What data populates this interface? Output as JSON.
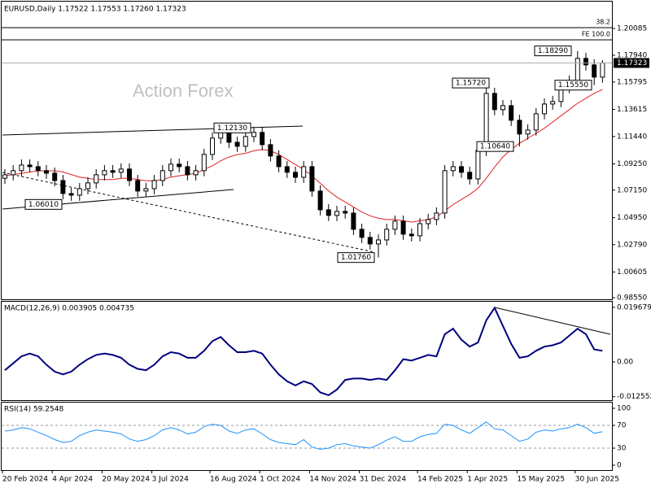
{
  "chart_data": [
    {
      "type": "candlestick",
      "title": "EURUSD,Daily 1.17522 1.17553 1.17260 1.17323",
      "watermark": "Action Forex",
      "categories": [
        "20 Feb 2024",
        null,
        null,
        null,
        null,
        null,
        "4 Apr 2024",
        null,
        null,
        null,
        null,
        null,
        "20 May 2024",
        null,
        null,
        null,
        null,
        null,
        "3 Jul 2024",
        null,
        null,
        null,
        null,
        null,
        null,
        "16 Aug 2024",
        null,
        null,
        null,
        null,
        null,
        "1 Oct 2024",
        null,
        null,
        null,
        null,
        null,
        "14 Nov 2024",
        null,
        null,
        null,
        null,
        null,
        "31 Dec 2024",
        null,
        null,
        null,
        null,
        null,
        null,
        "14 Feb 2025",
        null,
        null,
        null,
        null,
        null,
        "1 Apr 2025",
        null,
        null,
        null,
        null,
        null,
        "15 May 2025",
        null,
        null,
        null,
        null,
        null,
        null,
        "30 Jun 2025",
        null,
        null,
        null
      ],
      "open": [
        1.081,
        1.0838,
        1.0871,
        1.0916,
        1.0903,
        1.0871,
        1.0851,
        1.0792,
        1.0688,
        1.0675,
        1.0727,
        1.0773,
        1.0838,
        1.0871,
        1.0858,
        1.0884,
        1.0792,
        1.0708,
        1.0727,
        1.0792,
        1.0871,
        1.0923,
        1.0903,
        1.0838,
        1.0871,
        1.1001,
        1.1131,
        1.1183,
        1.1098,
        1.1066,
        1.1144,
        1.1177,
        1.1079,
        1.0988,
        1.0903,
        1.0858,
        1.0818,
        1.0903,
        1.0708,
        1.0558,
        1.0513,
        1.0545,
        1.0532,
        1.0402,
        1.0337,
        1.0285,
        1.0317,
        1.0402,
        1.0467,
        1.0363,
        1.035,
        1.0447,
        1.048,
        1.0532,
        1.0871,
        1.0903,
        1.0858,
        1.0805,
        1.1033,
        1.1489,
        1.1359,
        1.1391,
        1.1274,
        1.1164,
        1.1196,
        1.1326,
        1.1404,
        1.1424,
        1.1535,
        1.1587,
        1.1769,
        1.1717,
        1.1619
      ],
      "high": [
        1.0883,
        1.0916,
        1.0961,
        1.0961,
        1.0948,
        1.0916,
        1.0896,
        1.0837,
        1.0733,
        1.0772,
        1.0818,
        1.0883,
        1.0916,
        1.0916,
        1.0929,
        1.0929,
        1.0837,
        1.0772,
        1.0837,
        1.0916,
        1.0968,
        1.0968,
        1.0948,
        1.0916,
        1.1046,
        1.1176,
        1.1228,
        1.1228,
        1.1143,
        1.1189,
        1.1222,
        1.1222,
        1.1124,
        1.1033,
        1.0948,
        1.0903,
        1.0948,
        1.0948,
        1.0753,
        1.0603,
        1.059,
        1.059,
        1.0577,
        1.0447,
        1.0382,
        1.0362,
        1.0447,
        1.0512,
        1.0512,
        1.0408,
        1.0492,
        1.0525,
        1.0577,
        1.0916,
        1.0948,
        1.0948,
        1.0903,
        1.1078,
        1.1572,
        1.1534,
        1.1436,
        1.1436,
        1.1319,
        1.1241,
        1.1371,
        1.1449,
        1.1469,
        1.158,
        1.1632,
        1.1829,
        1.1814,
        1.1762,
        1.1755
      ],
      "low": [
        1.0765,
        1.0793,
        1.0826,
        1.0858,
        1.0826,
        1.0806,
        1.0747,
        1.0643,
        1.063,
        1.063,
        1.0682,
        1.0728,
        1.0793,
        1.0813,
        1.0813,
        1.0747,
        1.0663,
        1.0663,
        1.0682,
        1.0747,
        1.0826,
        1.0858,
        1.0793,
        1.0793,
        1.0826,
        1.0956,
        1.1086,
        1.1053,
        1.1021,
        1.1021,
        1.1099,
        1.1034,
        1.0943,
        1.0858,
        1.0813,
        1.0773,
        1.0773,
        1.0663,
        1.0513,
        1.0468,
        1.0468,
        1.0487,
        1.0357,
        1.0292,
        1.024,
        1.0176,
        1.0272,
        1.0357,
        1.0318,
        1.0305,
        1.0305,
        1.0402,
        1.0435,
        1.0487,
        1.0826,
        1.0813,
        1.076,
        1.076,
        1.0988,
        1.1314,
        1.1314,
        1.1229,
        1.1064,
        1.1119,
        1.1151,
        1.1281,
        1.1359,
        1.1379,
        1.149,
        1.1542,
        1.1672,
        1.1555,
        1.1574
      ],
      "close": [
        1.0838,
        1.0871,
        1.0916,
        1.0903,
        1.0871,
        1.0851,
        1.0792,
        1.0688,
        1.0675,
        1.0727,
        1.0773,
        1.0838,
        1.0871,
        1.0858,
        1.0884,
        1.0792,
        1.0708,
        1.0727,
        1.0792,
        1.0871,
        1.0923,
        1.0903,
        1.0838,
        1.0871,
        1.1001,
        1.1131,
        1.1183,
        1.1098,
        1.1066,
        1.1144,
        1.1177,
        1.1079,
        1.0988,
        1.0903,
        1.0858,
        1.0818,
        1.0903,
        1.0708,
        1.0558,
        1.0513,
        1.0545,
        1.0532,
        1.0402,
        1.0337,
        1.0285,
        1.0317,
        1.0402,
        1.0467,
        1.0363,
        1.035,
        1.0447,
        1.048,
        1.0532,
        1.0871,
        1.0903,
        1.0858,
        1.0805,
        1.1033,
        1.1489,
        1.1359,
        1.1391,
        1.1274,
        1.1164,
        1.1196,
        1.1326,
        1.1404,
        1.1424,
        1.1535,
        1.1587,
        1.1769,
        1.1717,
        1.1619,
        1.1732
      ],
      "color": "#000000",
      "overlay": {
        "color": "#e02020",
        "values": [
          1.083,
          1.084,
          1.085,
          1.086,
          1.087,
          1.087,
          1.087,
          1.086,
          1.084,
          1.082,
          1.081,
          1.08,
          1.08,
          1.08,
          1.081,
          1.081,
          1.08,
          1.079,
          1.079,
          1.08,
          1.082,
          1.083,
          1.084,
          1.085,
          1.088,
          1.091,
          1.095,
          1.098,
          1.1,
          1.101,
          1.103,
          1.104,
          1.103,
          1.1,
          1.096,
          1.092,
          1.088,
          1.083,
          1.077,
          1.071,
          1.066,
          1.062,
          1.058,
          1.054,
          1.051,
          1.049,
          1.048,
          1.048,
          1.047,
          1.046,
          1.047,
          1.048,
          1.05,
          1.055,
          1.06,
          1.064,
          1.068,
          1.073,
          1.081,
          1.09,
          1.098,
          1.104,
          1.109,
          1.113,
          1.117,
          1.121,
          1.126,
          1.131,
          1.136,
          1.141,
          1.145,
          1.149,
          1.152
        ]
      },
      "ylim": [
        0.9842,
        1.2223
      ],
      "yticks": [
        {
          "value": 0.9855,
          "label": "0.98550"
        },
        {
          "value": 1.00605,
          "label": "1.00605"
        },
        {
          "value": 1.0279,
          "label": "1.02790"
        },
        {
          "value": 1.0495,
          "label": "1.04950"
        },
        {
          "value": 1.0715,
          "label": "1.07150"
        },
        {
          "value": 1.0925,
          "label": "1.09250"
        },
        {
          "value": 1.1144,
          "label": "1.11440"
        },
        {
          "value": 1.13615,
          "label": "1.13615"
        },
        {
          "value": 1.15795,
          "label": "1.15795"
        },
        {
          "value": 1.1794,
          "label": "1.17940"
        },
        {
          "value": 1.20085,
          "label": "1.20085"
        }
      ],
      "last_price": {
        "value": 1.17323,
        "label": "1.17323"
      },
      "levels": [
        {
          "label": "38.2",
          "value": 1.2015
        },
        {
          "label": "FE 100.0",
          "value": 1.1917
        }
      ],
      "annotations": [
        {
          "label": "1.18290",
          "value": 1.1829
        },
        {
          "label": "1.15720",
          "value": 1.1572
        },
        {
          "label": "1.12130",
          "value": 1.1213
        },
        {
          "label": "1.10640",
          "value": 1.1064
        },
        {
          "label": "1.06010",
          "value": 1.0601
        },
        {
          "label": "1.01760",
          "value": 1.0176
        },
        {
          "label": "1.15550",
          "value": 1.1555
        }
      ]
    },
    {
      "type": "line",
      "title": "MACD(12,26,9) 0.003905 0.004735",
      "color": "#000080",
      "values": [
        -0.003,
        -0.0005,
        0.002,
        0.003,
        0.002,
        -0.001,
        -0.0035,
        -0.0045,
        -0.0035,
        -0.001,
        0.001,
        0.0025,
        0.003,
        0.0025,
        0.0015,
        -0.001,
        -0.0025,
        -0.003,
        -0.001,
        0.002,
        0.0035,
        0.003,
        0.0015,
        0.0015,
        0.004,
        0.0075,
        0.009,
        0.006,
        0.0035,
        0.0035,
        0.004,
        0.003,
        -0.001,
        -0.0045,
        -0.007,
        -0.0085,
        -0.007,
        -0.008,
        -0.011,
        -0.012,
        -0.01,
        -0.0065,
        -0.006,
        -0.006,
        -0.0065,
        -0.006,
        -0.0065,
        -0.003,
        0.001,
        0.0005,
        0.0015,
        0.0025,
        0.002,
        0.01,
        0.012,
        0.008,
        0.0055,
        0.007,
        0.015,
        0.0195,
        0.013,
        0.0065,
        0.0015,
        0.002,
        0.004,
        0.0055,
        0.006,
        0.007,
        0.0095,
        0.012,
        0.01,
        0.0045,
        0.004
      ],
      "ylim": [
        -0.0138,
        0.0217
      ],
      "yticks": [
        0.019679,
        {
          "value": 0,
          "label": "0.00"
        },
        -0.012552
      ]
    },
    {
      "type": "line",
      "title": "RSI(14) 59.2548",
      "color": "#1e90ff",
      "values": [
        60,
        62,
        66,
        64,
        58,
        52,
        45,
        40,
        42,
        52,
        58,
        62,
        60,
        58,
        55,
        46,
        42,
        45,
        52,
        62,
        66,
        62,
        55,
        58,
        68,
        72,
        70,
        60,
        56,
        62,
        64,
        55,
        45,
        40,
        38,
        36,
        45,
        32,
        28,
        30,
        36,
        38,
        34,
        32,
        30,
        36,
        44,
        50,
        42,
        42,
        50,
        54,
        56,
        72,
        70,
        62,
        56,
        66,
        76,
        64,
        62,
        52,
        42,
        46,
        58,
        62,
        60,
        64,
        66,
        72,
        66,
        56,
        59
      ],
      "ylim": [
        -8.6,
        110
      ],
      "yticks": [
        100,
        70,
        30,
        0
      ],
      "levels": [
        70,
        30
      ]
    }
  ]
}
